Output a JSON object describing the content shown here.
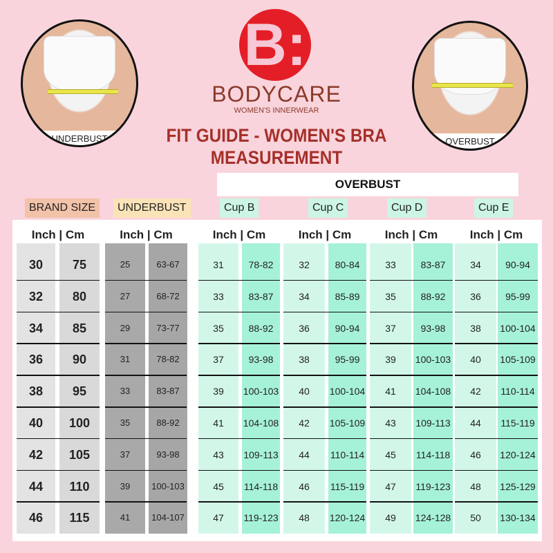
{
  "brand": {
    "name": "BODYCARE",
    "tagline": "WOMEN'S INNERWEAR",
    "logo_text": "B:",
    "logo_color": "#e41e26"
  },
  "title": {
    "line1": "FIT GUIDE - WOMEN'S BRA",
    "line2": "MEASUREMENT"
  },
  "photos": {
    "left_label": "UNDERBUST",
    "right_label": "OVERBUST"
  },
  "overbust_header": "OVERBUST",
  "group_labels": {
    "brand_size": "BRAND SIZE",
    "underbust": "UNDERBUST",
    "cup_b": "Cup B",
    "cup_c": "Cup C",
    "cup_d": "Cup D",
    "cup_e": "Cup E"
  },
  "unit_header": "Inch  |  Cm",
  "colors": {
    "background": "#f9d4dc",
    "brand_label": "#f2c2a9",
    "underbust_label": "#fbe3b8",
    "cup_label": "#cdf5e5",
    "underbust_col": "#a8a8a8",
    "cup_inch_col": "#d2f7e9",
    "cup_cm_col": "#a6f2d8"
  },
  "chart_data": {
    "type": "table",
    "columns": [
      "Brand Size Inch",
      "Brand Size Cm",
      "Underbust Inch",
      "Underbust Cm",
      "Cup B Inch",
      "Cup B Cm",
      "Cup C Inch",
      "Cup C Cm",
      "Cup D Inch",
      "Cup D Cm",
      "Cup E Inch",
      "Cup E Cm"
    ],
    "rows": [
      [
        "30",
        "75",
        "25",
        "63-67",
        "31",
        "78-82",
        "32",
        "80-84",
        "33",
        "83-87",
        "34",
        "90-94"
      ],
      [
        "32",
        "80",
        "27",
        "68-72",
        "33",
        "83-87",
        "34",
        "85-89",
        "35",
        "88-92",
        "36",
        "95-99"
      ],
      [
        "34",
        "85",
        "29",
        "73-77",
        "35",
        "88-92",
        "36",
        "90-94",
        "37",
        "93-98",
        "38",
        "100-104"
      ],
      [
        "36",
        "90",
        "31",
        "78-82",
        "37",
        "93-98",
        "38",
        "95-99",
        "39",
        "100-103",
        "40",
        "105-109"
      ],
      [
        "38",
        "95",
        "33",
        "83-87",
        "39",
        "100-103",
        "40",
        "100-104",
        "41",
        "104-108",
        "42",
        "110-114"
      ],
      [
        "40",
        "100",
        "35",
        "88-92",
        "41",
        "104-108",
        "42",
        "105-109",
        "43",
        "109-113",
        "44",
        "115-119"
      ],
      [
        "42",
        "105",
        "37",
        "93-98",
        "43",
        "109-113",
        "44",
        "110-114",
        "45",
        "114-118",
        "46",
        "120-124"
      ],
      [
        "44",
        "110",
        "39",
        "100-103",
        "45",
        "114-118",
        "46",
        "115-119",
        "47",
        "119-123",
        "48",
        "125-129"
      ],
      [
        "46",
        "115",
        "41",
        "104-107",
        "47",
        "119-123",
        "48",
        "120-124",
        "49",
        "124-128",
        "50",
        "130-134"
      ]
    ]
  }
}
